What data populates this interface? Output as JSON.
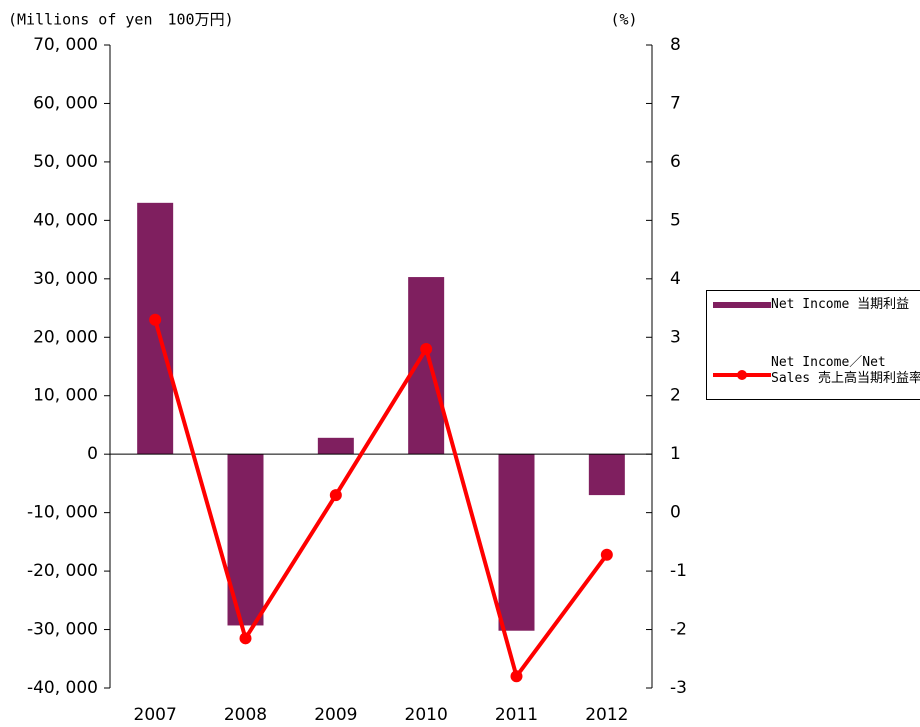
{
  "chart_data": {
    "type": "bar-line",
    "ylabel": "(Millions of yen　100万円)",
    "y2label": "(%)",
    "categories": [
      "2007",
      "2008",
      "2009",
      "2010",
      "2011",
      "2012"
    ],
    "series": [
      {
        "name": "Net Income 当期利益",
        "type": "bar",
        "color": "#7f1f5f",
        "values": [
          43000,
          -29300,
          2800,
          30300,
          -30200,
          -7000
        ]
      },
      {
        "name": "Net Income／Net Sales 売上高当期利益率",
        "type": "line",
        "axis": "y2",
        "color": "#ff0000",
        "values": [
          3.3,
          -2.15,
          0.3,
          2.8,
          -2.8,
          -0.72
        ]
      }
    ],
    "ylim": [
      -40000,
      70000
    ],
    "yticks": [
      {
        "value": -40000,
        "label": "-40, 000"
      },
      {
        "value": -30000,
        "label": "-30, 000"
      },
      {
        "value": -20000,
        "label": "-20, 000"
      },
      {
        "value": -10000,
        "label": "-10, 000"
      },
      0,
      {
        "value": 10000,
        "label": "10, 000"
      },
      {
        "value": 20000,
        "label": "20, 000"
      },
      {
        "value": 30000,
        "label": "30, 000"
      },
      {
        "value": 40000,
        "label": "40, 000"
      },
      {
        "value": 50000,
        "label": "50, 000"
      },
      {
        "value": 60000,
        "label": "60, 000"
      },
      {
        "value": 70000,
        "label": "70, 000"
      }
    ],
    "y2lim": [
      -3,
      8
    ],
    "y2ticks": [
      -3,
      -2,
      -1,
      0,
      1,
      2,
      3,
      4,
      5,
      6,
      7,
      8
    ]
  }
}
